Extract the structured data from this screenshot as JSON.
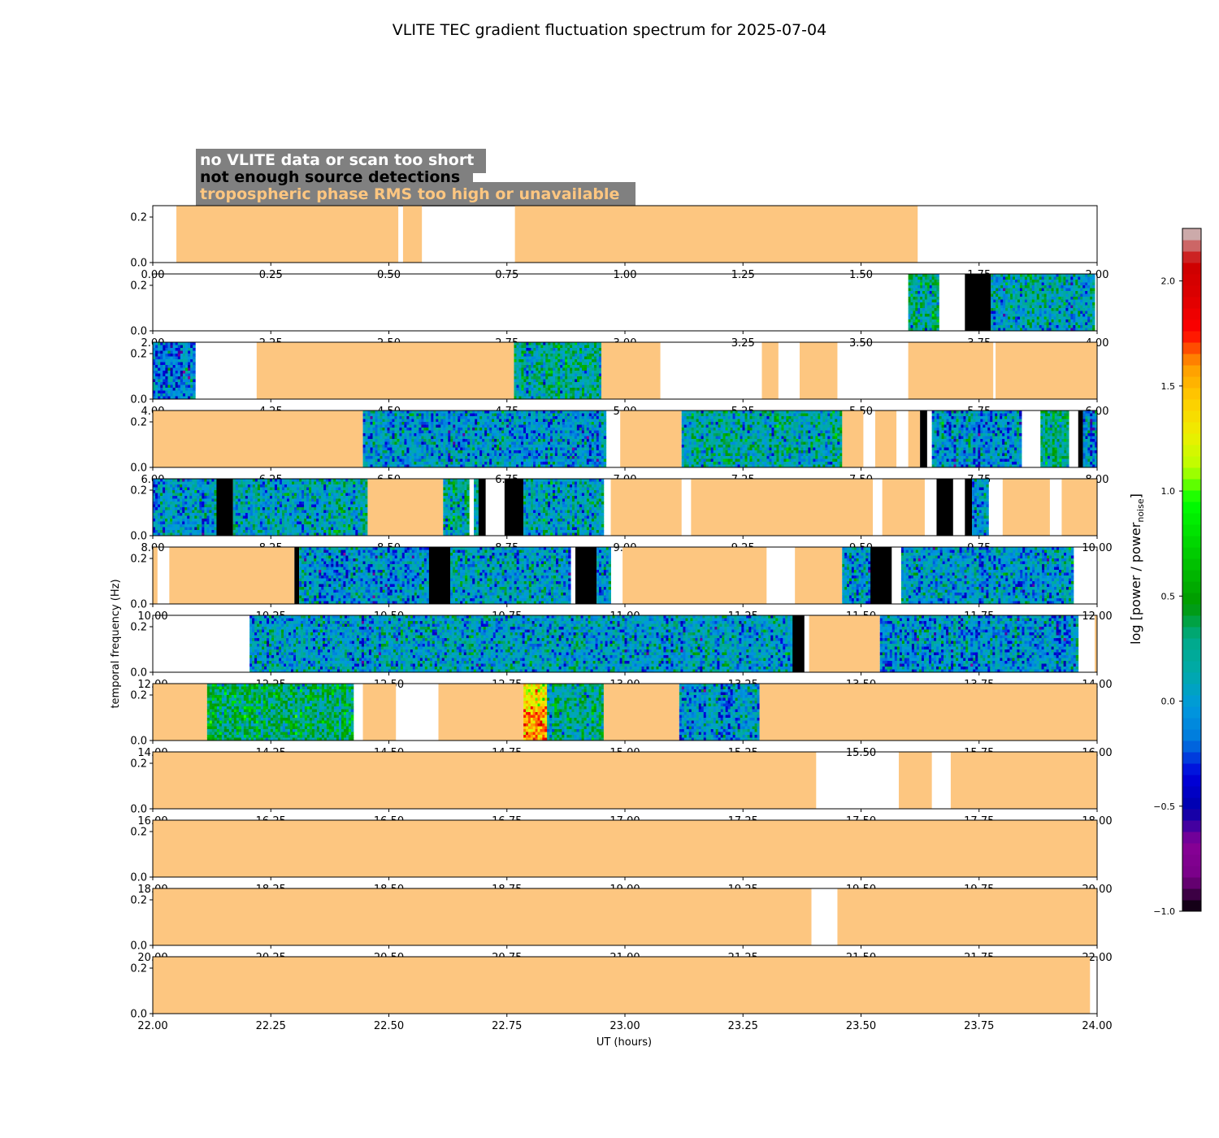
{
  "chart_data": {
    "type": "heatmap",
    "title": "VLITE TEC gradient fluctuation spectrum for 2025-07-04",
    "xlabel": "UT (hours)",
    "ylabel": "temporal frequency (Hz)",
    "ylim": [
      0,
      0.25
    ],
    "yticks": [
      "0.0",
      "0.2"
    ],
    "colorbar": {
      "label_main": "log [power / power",
      "label_sub": "noise",
      "label_end": "]",
      "range": [
        -1.0,
        2.25
      ],
      "ticks": [
        "−1.0",
        "−0.5",
        "0.0",
        "0.5",
        "1.0",
        "1.5",
        "2.0"
      ],
      "tick_values": [
        -1.0,
        -0.5,
        0.0,
        0.5,
        1.0,
        1.5,
        2.0
      ]
    },
    "legend": [
      {
        "text": "no VLITE data or scan too short",
        "color": "#ffffff"
      },
      {
        "text": "not enough source detections",
        "color": "#000000"
      },
      {
        "text": "tropospheric phase RMS too high or unavailable",
        "color": "#fdc680"
      }
    ],
    "colors": {
      "no_data": "#ffffff",
      "few_detections": "#000000",
      "tropo_rms": "#fdc680",
      "legend_box": "#808080"
    },
    "panels": [
      {
        "x_range": [
          0,
          2
        ],
        "xticks": [
          "0.00",
          "0.25",
          "0.50",
          "0.75",
          "1.00",
          "1.25",
          "1.50",
          "1.75",
          "2.00"
        ],
        "segments": [
          [
            0.05,
            0.52,
            "tropo"
          ],
          [
            0.53,
            0.57,
            "tropo"
          ],
          [
            0.767,
            1.62,
            "tropo"
          ]
        ]
      },
      {
        "x_range": [
          2,
          4
        ],
        "xticks": [
          "2.00",
          "2.25",
          "2.50",
          "2.75",
          "3.00",
          "3.25",
          "3.50",
          "3.75",
          "4.00"
        ],
        "segments": [
          [
            3.6,
            3.665,
            "spec",
            0.2
          ],
          [
            3.72,
            3.775,
            "black"
          ],
          [
            3.775,
            3.995,
            "spec",
            0.1
          ]
        ]
      },
      {
        "x_range": [
          4,
          6
        ],
        "xticks": [
          "4.00",
          "4.25",
          "4.50",
          "4.75",
          "5.00",
          "5.25",
          "5.50",
          "5.75",
          "6.00"
        ],
        "segments": [
          [
            4.0,
            4.09,
            "spec",
            -0.1
          ],
          [
            4.22,
            4.765,
            "tropo"
          ],
          [
            4.765,
            4.95,
            "spec",
            0.2
          ],
          [
            4.95,
            5.075,
            "tropo"
          ],
          [
            5.29,
            5.325,
            "tropo"
          ],
          [
            5.37,
            5.45,
            "tropo"
          ],
          [
            5.6,
            5.78,
            "tropo"
          ],
          [
            5.785,
            6.0,
            "tropo"
          ]
        ]
      },
      {
        "x_range": [
          6,
          8
        ],
        "xticks": [
          "6.00",
          "6.25",
          "6.50",
          "6.75",
          "7.00",
          "7.25",
          "7.50",
          "7.75",
          "8.00"
        ],
        "segments": [
          [
            6.0,
            6.445,
            "tropo"
          ],
          [
            6.445,
            6.96,
            "spec",
            0.0
          ],
          [
            6.99,
            7.12,
            "tropo"
          ],
          [
            7.12,
            7.46,
            "spec",
            0.15
          ],
          [
            7.46,
            7.505,
            "tropo"
          ],
          [
            7.53,
            7.575,
            "tropo"
          ],
          [
            7.6,
            7.625,
            "tropo"
          ],
          [
            7.625,
            7.64,
            "black"
          ],
          [
            7.65,
            7.84,
            "spec",
            0.0
          ],
          [
            7.88,
            7.94,
            "spec",
            0.3
          ],
          [
            7.96,
            7.97,
            "black"
          ],
          [
            7.97,
            8.0,
            "spec",
            0.0
          ]
        ]
      },
      {
        "x_range": [
          8,
          10
        ],
        "xticks": [
          "8.00",
          "8.25",
          "8.50",
          "8.75",
          "9.00",
          "9.25",
          "9.50",
          "9.75",
          "10.00"
        ],
        "segments": [
          [
            8.0,
            8.135,
            "spec",
            0.0
          ],
          [
            8.135,
            8.17,
            "black"
          ],
          [
            8.17,
            8.455,
            "spec",
            0.1
          ],
          [
            8.455,
            8.615,
            "tropo"
          ],
          [
            8.615,
            8.67,
            "spec",
            0.2
          ],
          [
            8.68,
            8.69,
            "spec",
            0.2
          ],
          [
            8.69,
            8.705,
            "black"
          ],
          [
            8.745,
            8.785,
            "black"
          ],
          [
            8.785,
            8.955,
            "spec",
            0.1
          ],
          [
            8.97,
            9.12,
            "tropo"
          ],
          [
            9.14,
            9.525,
            "tropo"
          ],
          [
            9.545,
            9.635,
            "tropo"
          ],
          [
            9.66,
            9.695,
            "black"
          ],
          [
            9.72,
            9.735,
            "black"
          ],
          [
            9.735,
            9.77,
            "spec",
            0.0
          ],
          [
            9.8,
            9.9,
            "tropo"
          ],
          [
            9.925,
            10.0,
            "tropo"
          ]
        ]
      },
      {
        "x_range": [
          10,
          12
        ],
        "xticks": [
          "10.00",
          "10.25",
          "10.50",
          "10.75",
          "11.00",
          "11.25",
          "11.50",
          "11.75",
          "12.00"
        ],
        "segments": [
          [
            10.0,
            10.01,
            "tropo"
          ],
          [
            10.035,
            10.3,
            "tropo"
          ],
          [
            10.3,
            10.31,
            "black"
          ],
          [
            10.31,
            10.585,
            "spec",
            0.0
          ],
          [
            10.585,
            10.63,
            "black"
          ],
          [
            10.63,
            10.885,
            "spec",
            0.05
          ],
          [
            10.895,
            10.94,
            "black"
          ],
          [
            10.94,
            10.97,
            "spec",
            0.0
          ],
          [
            10.995,
            11.3,
            "tropo"
          ],
          [
            11.36,
            11.46,
            "tropo"
          ],
          [
            11.46,
            11.52,
            "spec",
            0.0
          ],
          [
            11.52,
            11.565,
            "black"
          ],
          [
            11.585,
            11.95,
            "spec",
            0.0
          ]
        ]
      },
      {
        "x_range": [
          12,
          14
        ],
        "xticks": [
          "12.00",
          "12.25",
          "12.50",
          "12.75",
          "13.00",
          "13.25",
          "13.50",
          "13.75",
          "14.00"
        ],
        "segments": [
          [
            12.205,
            13.355,
            "spec",
            0.05
          ],
          [
            13.355,
            13.38,
            "black"
          ],
          [
            13.39,
            13.54,
            "tropo"
          ],
          [
            13.54,
            13.96,
            "spec",
            0.0
          ],
          [
            13.995,
            14.0,
            "tropo"
          ]
        ]
      },
      {
        "x_range": [
          14,
          16
        ],
        "xticks": [
          "14.00",
          "14.25",
          "14.50",
          "14.75",
          "15.00",
          "15.25",
          "15.50",
          "15.75",
          "16.00"
        ],
        "segments": [
          [
            14.0,
            14.115,
            "tropo"
          ],
          [
            14.115,
            14.425,
            "spec",
            0.35
          ],
          [
            14.445,
            14.515,
            "tropo"
          ],
          [
            14.605,
            14.785,
            "tropo"
          ],
          [
            14.785,
            14.835,
            "spec",
            1.3
          ],
          [
            14.835,
            14.955,
            "spec",
            0.2
          ],
          [
            14.955,
            15.115,
            "tropo"
          ],
          [
            15.115,
            15.285,
            "spec",
            0.0
          ],
          [
            15.285,
            16.0,
            "tropo"
          ]
        ]
      },
      {
        "x_range": [
          16,
          18
        ],
        "xticks": [
          "16.00",
          "16.25",
          "16.50",
          "16.75",
          "17.00",
          "17.25",
          "17.50",
          "17.75",
          "18.00"
        ],
        "segments": [
          [
            16.0,
            17.405,
            "tropo"
          ],
          [
            17.58,
            17.65,
            "tropo"
          ],
          [
            17.69,
            18.0,
            "tropo"
          ]
        ]
      },
      {
        "x_range": [
          18,
          20
        ],
        "xticks": [
          "18.00",
          "18.25",
          "18.50",
          "18.75",
          "19.00",
          "19.25",
          "19.50",
          "19.75",
          "20.00"
        ],
        "segments": [
          [
            18.0,
            20.0,
            "tropo"
          ]
        ]
      },
      {
        "x_range": [
          20,
          22
        ],
        "xticks": [
          "20.00",
          "20.25",
          "20.50",
          "20.75",
          "21.00",
          "21.25",
          "21.50",
          "21.75",
          "22.00"
        ],
        "segments": [
          [
            20.0,
            21.395,
            "tropo"
          ],
          [
            21.45,
            22.0,
            "tropo"
          ]
        ]
      },
      {
        "x_range": [
          22,
          24
        ],
        "xticks": [
          "22.00",
          "22.25",
          "22.50",
          "22.75",
          "23.00",
          "23.25",
          "23.50",
          "23.75",
          "24.00"
        ],
        "segments": [
          [
            22.0,
            23.985,
            "tropo"
          ]
        ]
      }
    ]
  }
}
